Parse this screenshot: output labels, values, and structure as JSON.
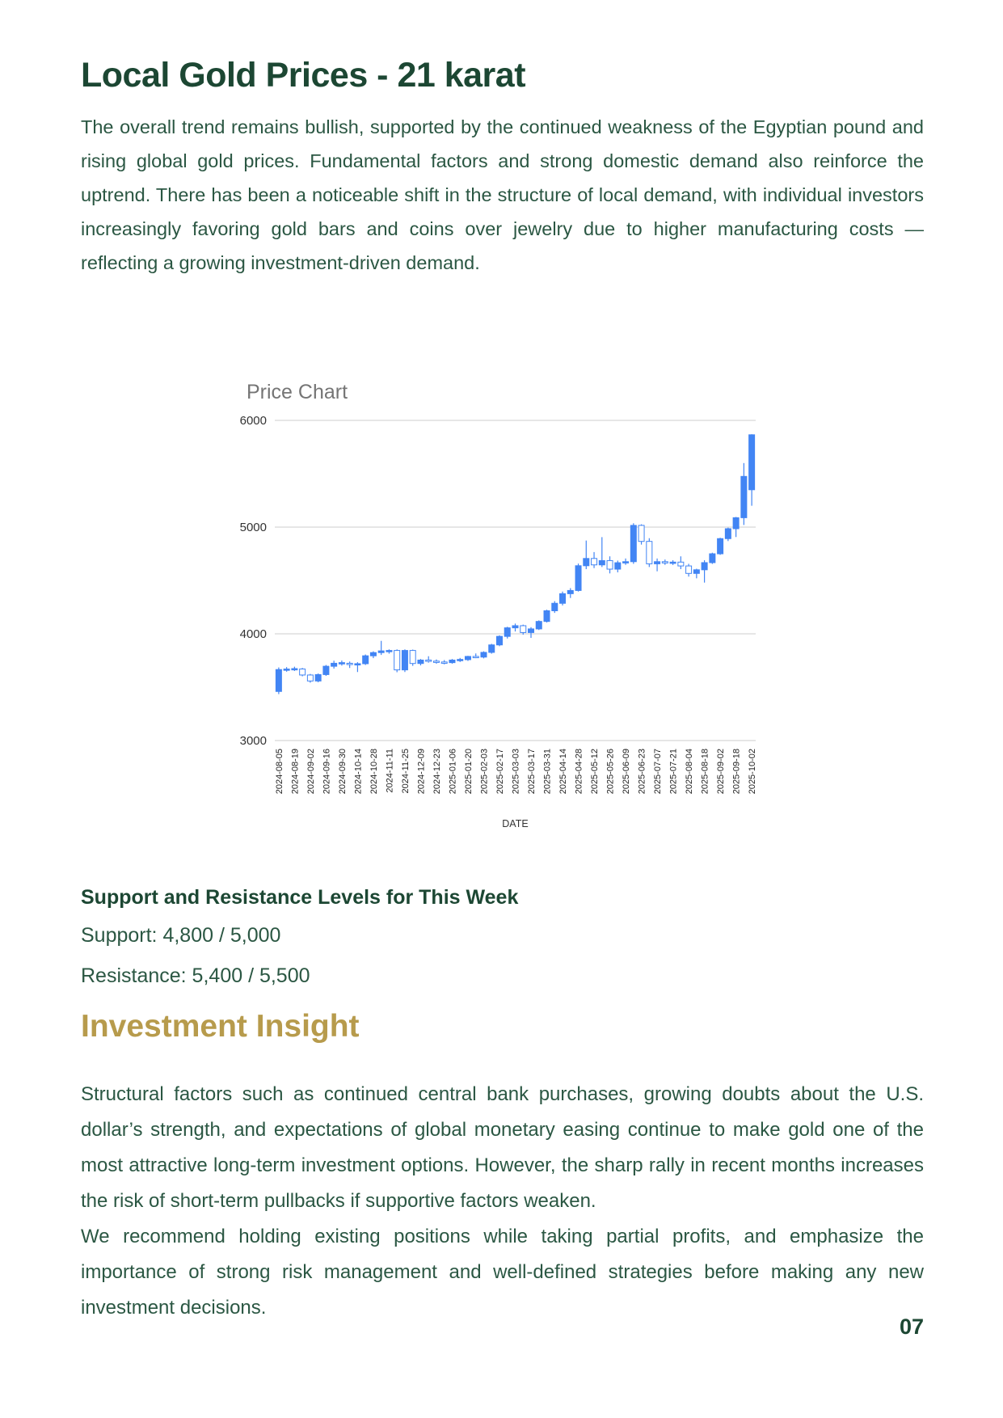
{
  "page": {
    "title": "Local Gold Prices - 21 karat",
    "intro": "The overall trend remains bullish, supported by the continued weakness of the Egyptian pound and rising global gold prices. Fundamental factors and strong domestic demand also reinforce the uptrend. There has been a noticeable shift in the structure of local demand, with individual investors increasingly favoring gold bars and coins over jewelry due to higher manufacturing costs — reflecting a growing investment-driven demand.",
    "support_heading": "Support and Resistance Levels for This Week",
    "support_line": "Support: 4,800 / 5,000",
    "resistance_line": "Resistance: 5,400 / 5,500",
    "insight_heading": "Investment Insight",
    "insight_para1": "Structural factors such as continued central bank purchases, growing doubts about the U.S. dollar’s strength, and expectations of global monetary easing continue to make gold one of the most attractive long-term investment options. However, the sharp rally in recent months increases the risk of short-term pullbacks if supportive factors weaken.",
    "insight_para2": "We recommend holding existing positions while taking partial profits, and emphasize the importance of strong risk management and well-defined strategies before making any new investment decisions.",
    "page_number": "07"
  },
  "colors": {
    "heading_green": "#1c4733",
    "body_green": "#2b5743",
    "gold": "#b79b4c",
    "chart_blue": "#4285f4",
    "grid_gray": "#cccccc",
    "chart_title_gray": "#757575",
    "axis_text": "#333333"
  },
  "chart_data": {
    "type": "candlestick",
    "title": "Price Chart",
    "xlabel": "DATE",
    "ylabel": "",
    "ylim": [
      3000,
      6000
    ],
    "y_ticks": [
      6000,
      5000,
      4000,
      3000
    ],
    "grid": true,
    "tick_every": 2,
    "x_tick_labels": [
      "2024-08-05",
      "2024-08-19",
      "2024-09-02",
      "2024-09-16",
      "2024-09-30",
      "2024-10-14",
      "2024-10-28",
      "2024-11-11",
      "2024-11-25",
      "2024-12-09",
      "2024-12-23",
      "2025-01-06",
      "2025-01-20",
      "2025-02-03",
      "2025-02-17",
      "2025-03-03",
      "2025-03-17",
      "2025-03-31",
      "2025-04-14",
      "2025-04-28",
      "2025-05-12",
      "2025-05-26",
      "2025-06-09",
      "2025-06-23",
      "2025-07-07",
      "2025-07-21",
      "2025-08-04",
      "2025-08-18",
      "2025-09-02",
      "2025-09-18",
      "2025-10-02"
    ],
    "series_note": "weekly OHLC, values approximate (read from gridlines)",
    "candles": [
      [
        3460,
        3685,
        3435,
        3665
      ],
      [
        3660,
        3688,
        3645,
        3670
      ],
      [
        3665,
        3692,
        3652,
        3674
      ],
      [
        3670,
        3680,
        3602,
        3614
      ],
      [
        3614,
        3624,
        3542,
        3558
      ],
      [
        3558,
        3628,
        3546,
        3618
      ],
      [
        3618,
        3708,
        3606,
        3696
      ],
      [
        3696,
        3748,
        3674,
        3724
      ],
      [
        3722,
        3750,
        3702,
        3730
      ],
      [
        3724,
        3740,
        3680,
        3714
      ],
      [
        3714,
        3734,
        3642,
        3720
      ],
      [
        3720,
        3806,
        3708,
        3794
      ],
      [
        3794,
        3836,
        3772,
        3824
      ],
      [
        3824,
        3934,
        3802,
        3840
      ],
      [
        3834,
        3854,
        3814,
        3844
      ],
      [
        3844,
        3854,
        3640,
        3662
      ],
      [
        3662,
        3854,
        3642,
        3844
      ],
      [
        3844,
        3852,
        3700,
        3722
      ],
      [
        3722,
        3764,
        3704,
        3754
      ],
      [
        3754,
        3790,
        3730,
        3744
      ],
      [
        3744,
        3760,
        3720,
        3736
      ],
      [
        3736,
        3754,
        3714,
        3730
      ],
      [
        3730,
        3764,
        3720,
        3754
      ],
      [
        3754,
        3774,
        3736,
        3760
      ],
      [
        3758,
        3794,
        3746,
        3788
      ],
      [
        3788,
        3816,
        3772,
        3782
      ],
      [
        3782,
        3836,
        3770,
        3826
      ],
      [
        3826,
        3906,
        3814,
        3896
      ],
      [
        3896,
        3986,
        3884,
        3976
      ],
      [
        3976,
        4066,
        3956,
        4056
      ],
      [
        4056,
        4096,
        4022,
        4076
      ],
      [
        4076,
        4086,
        3992,
        4012
      ],
      [
        4012,
        4062,
        3962,
        4046
      ],
      [
        4046,
        4126,
        4036,
        4116
      ],
      [
        4116,
        4226,
        4106,
        4216
      ],
      [
        4216,
        4306,
        4196,
        4286
      ],
      [
        4286,
        4396,
        4266,
        4376
      ],
      [
        4376,
        4428,
        4336,
        4406
      ],
      [
        4406,
        4658,
        4396,
        4638
      ],
      [
        4638,
        4874,
        4606,
        4706
      ],
      [
        4706,
        4766,
        4616,
        4646
      ],
      [
        4646,
        4906,
        4626,
        4686
      ],
      [
        4686,
        4726,
        4566,
        4606
      ],
      [
        4606,
        4686,
        4576,
        4666
      ],
      [
        4666,
        4706,
        4646,
        4676
      ],
      [
        4676,
        5036,
        4656,
        5016
      ],
      [
        5016,
        5026,
        4836,
        4866
      ],
      [
        4866,
        4896,
        4626,
        4656
      ],
      [
        4656,
        4706,
        4586,
        4676
      ],
      [
        4676,
        4696,
        4646,
        4668
      ],
      [
        4668,
        4690,
        4645,
        4672
      ],
      [
        4672,
        4726,
        4606,
        4636
      ],
      [
        4636,
        4656,
        4536,
        4566
      ],
      [
        4566,
        4610,
        4520,
        4600
      ],
      [
        4600,
        4690,
        4480,
        4667
      ],
      [
        4667,
        4760,
        4655,
        4750
      ],
      [
        4750,
        4900,
        4740,
        4892
      ],
      [
        4892,
        4995,
        4869,
        4985
      ],
      [
        4985,
        5095,
        4907,
        5088
      ],
      [
        5088,
        5600,
        5020,
        5475
      ],
      [
        5350,
        5870,
        5200,
        5865
      ]
    ]
  }
}
